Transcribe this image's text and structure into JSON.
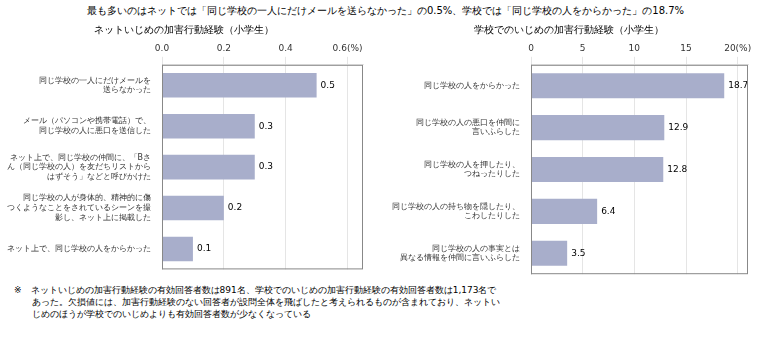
{
  "title": "最も多いのはネットでは「同じ学校の一人にだけメールを送らなかった」の0.5%、学校では「同じ学校の人をからかった」の18.7%",
  "annotations": [
    "※　ネットいじめの加害行動経験の有効回答者数は891名、学校でのいじめの加害行動経験の有効回答者数は1,173名で",
    "　　あった。欠損値には、加害行動経験のない回答者が設問全体を飛ばしたと考えられるものが含まれており、ネットい",
    "　　じめのほうが学校でのいじめよりも有効回答者数が少なくなっている"
  ],
  "chart_data": [
    {
      "type": "bar",
      "orientation": "horizontal",
      "title": "ネットいじめの加害行動経験（小学生）",
      "categories": [
        "同じ学校の一人にだけメールを\n送らなかった",
        "メール（パソコンや携帯電話）で、\n同じ学校の人に悪口を送信した",
        "ネット上で、同じ学校の仲間に、「Bさ\nん（同じ学校の人）を友だちリストから\nはずそう」などと呼びかけた",
        "同じ学校の人が身体的、精神的に傷\nつくようなことをされているシーンを撮\n影し、ネット上に掲載した",
        "ネット上で、同じ学校の人をからかった"
      ],
      "values": [
        0.5,
        0.3,
        0.3,
        0.2,
        0.1
      ],
      "color": "#a8aecb",
      "xlim": [
        0,
        0.65
      ],
      "xticks": [
        {
          "value": 0.0,
          "label": "0.0"
        },
        0.2,
        0.4,
        {
          "value": 0.6,
          "label": "0.6(%)"
        }
      ],
      "grid": true,
      "data_labels": true
    },
    {
      "type": "bar",
      "orientation": "horizontal",
      "title": "学校でのいじめの加害行動経験（小学生）",
      "categories": [
        "同じ学校の人をからかった",
        "同じ学校の人の悪口を仲間に\n言いふらした",
        "同じ学校の人を押したり、\nつねったりした",
        "同じ学校の人の持ち物を隠したり、\nこわしたりした",
        "同じ学校の人の事実とは\n異なる情報を仲間に言いふらした"
      ],
      "values": [
        18.7,
        12.9,
        12.8,
        6.4,
        3.5
      ],
      "color": "#a8aecb",
      "xlim": [
        0,
        21
      ],
      "xticks": [
        0,
        5,
        10,
        15,
        {
          "value": 20,
          "label": "20(%)"
        }
      ],
      "grid": true,
      "data_labels": true
    }
  ]
}
